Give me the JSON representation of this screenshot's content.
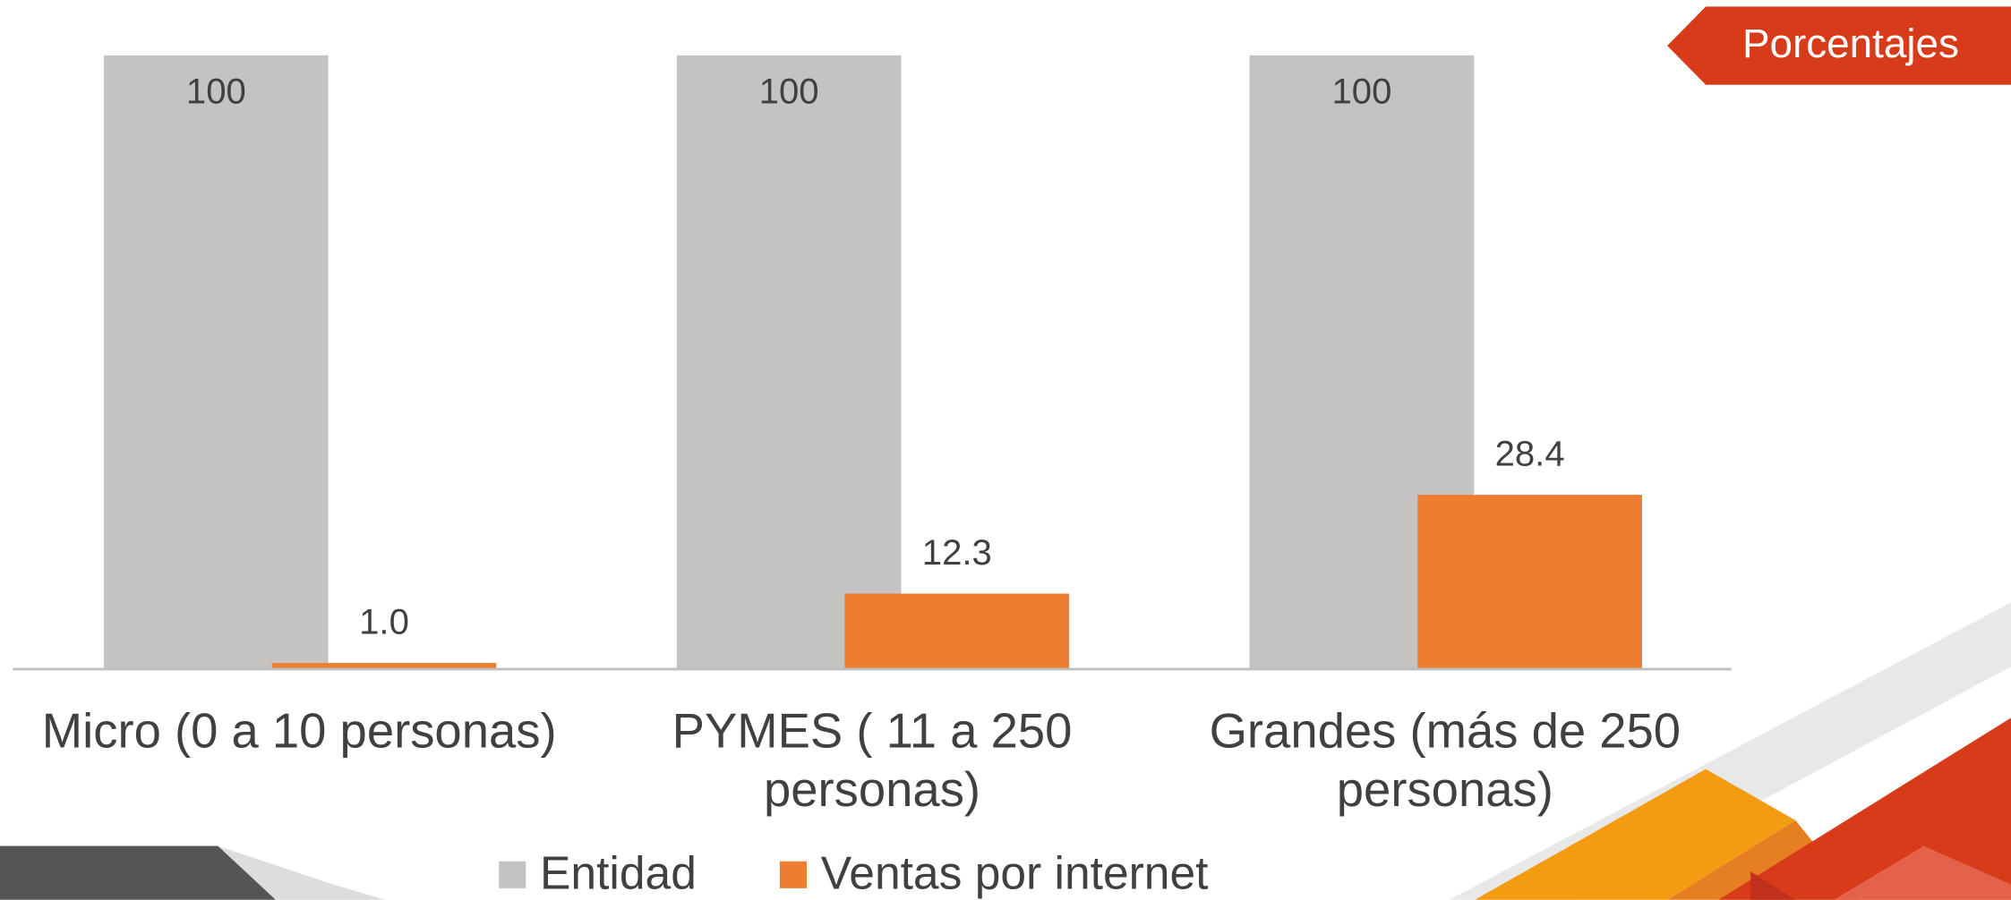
{
  "chart_data": {
    "type": "bar",
    "badge": "Porcentajes",
    "categories": [
      "Micro (0 a 10 personas)",
      "PYMES ( 11 a 250 personas)",
      "Grandes (más de 250 personas)"
    ],
    "series": [
      {
        "name": "Entidad",
        "color": "#c4c3c1",
        "values": [
          100,
          100,
          100
        ]
      },
      {
        "name": "Ventas por internet",
        "color": "#ed7d31",
        "values": [
          1.0,
          12.3,
          28.4
        ],
        "value_labels": [
          "1.0",
          "12.3",
          "28.4"
        ]
      }
    ],
    "ylim": [
      0,
      100
    ]
  }
}
